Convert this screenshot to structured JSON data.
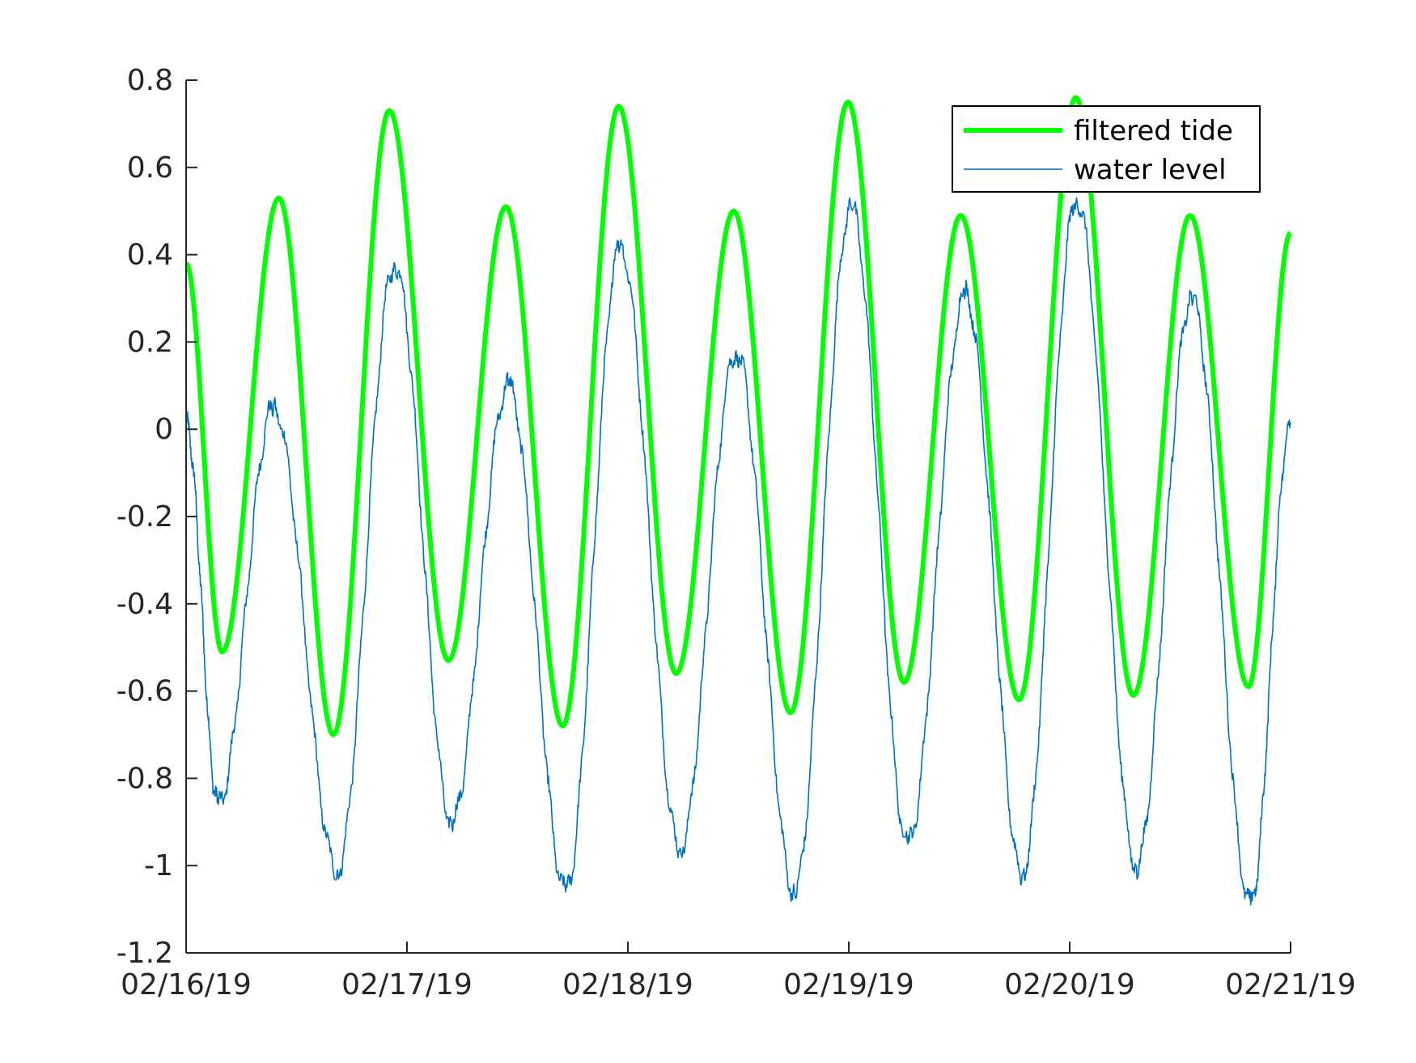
{
  "chart_data": {
    "type": "line",
    "xlabel": "",
    "ylabel": "",
    "x_ticks": [
      "02/16/19",
      "02/17/19",
      "02/18/19",
      "02/19/19",
      "02/20/19",
      "02/21/19"
    ],
    "xlim": [
      "02/16/19",
      "02/21/19"
    ],
    "y_ticks": [
      "0.8",
      "0.6",
      "0.4",
      "0.2",
      "0",
      "-0.2",
      "-0.4",
      "-0.6",
      "-0.8",
      "-1",
      "-1.2"
    ],
    "ylim": [
      -1.2,
      0.8
    ],
    "grid": false,
    "legend_position": "top-right",
    "series": [
      {
        "name": "filtered tide",
        "color": "#00ff00",
        "line_width": "thick",
        "points": [
          [
            "02/16/19 00:00",
            0.38
          ],
          [
            "02/16/19 03:55",
            -0.51
          ],
          [
            "02/16/19 10:05",
            0.53
          ],
          [
            "02/16/19 16:00",
            -0.7
          ],
          [
            "02/16/19 22:05",
            0.73
          ],
          [
            "02/17/19 04:30",
            -0.53
          ],
          [
            "02/17/19 10:45",
            0.51
          ],
          [
            "02/17/19 16:55",
            -0.68
          ],
          [
            "02/17/19 23:00",
            0.74
          ],
          [
            "02/18/19 05:15",
            -0.56
          ],
          [
            "02/18/19 11:30",
            0.5
          ],
          [
            "02/18/19 17:40",
            -0.65
          ],
          [
            "02/18/19 23:55",
            0.75
          ],
          [
            "02/19/19 06:00",
            -0.58
          ],
          [
            "02/19/19 12:10",
            0.49
          ],
          [
            "02/19/19 18:30",
            -0.62
          ],
          [
            "02/20/19 00:40",
            0.76
          ],
          [
            "02/20/19 06:55",
            -0.61
          ],
          [
            "02/20/19 13:05",
            0.49
          ],
          [
            "02/20/19 19:25",
            -0.59
          ],
          [
            "02/21/19 00:00",
            0.45
          ]
        ]
      },
      {
        "name": "water level",
        "color": "#0072bd",
        "line_width": "thin",
        "points": [
          [
            "02/16/19 00:00",
            0.01
          ],
          [
            "02/16/19 03:30",
            -0.86
          ],
          [
            "02/16/19 09:30",
            0.05
          ],
          [
            "02/16/19 16:25",
            -1.01
          ],
          [
            "02/16/19 22:40",
            0.38
          ],
          [
            "02/17/19 04:50",
            -0.9
          ],
          [
            "02/17/19 11:00",
            0.1
          ],
          [
            "02/17/19 17:15",
            -1.06
          ],
          [
            "02/17/19 23:10",
            0.42
          ],
          [
            "02/18/19 05:40",
            -0.96
          ],
          [
            "02/18/19 11:45",
            0.18
          ],
          [
            "02/18/19 18:05",
            -1.06
          ],
          [
            "02/19/19 00:15",
            0.51
          ],
          [
            "02/19/19 06:25",
            -0.95
          ],
          [
            "02/19/19 12:40",
            0.31
          ],
          [
            "02/19/19 18:50",
            -1.02
          ],
          [
            "02/20/19 00:45",
            0.53
          ],
          [
            "02/20/19 07:15",
            -1.0
          ],
          [
            "02/20/19 13:15",
            0.3
          ],
          [
            "02/20/19 19:40",
            -1.09
          ],
          [
            "02/21/19 00:00",
            0.01
          ]
        ]
      }
    ]
  }
}
